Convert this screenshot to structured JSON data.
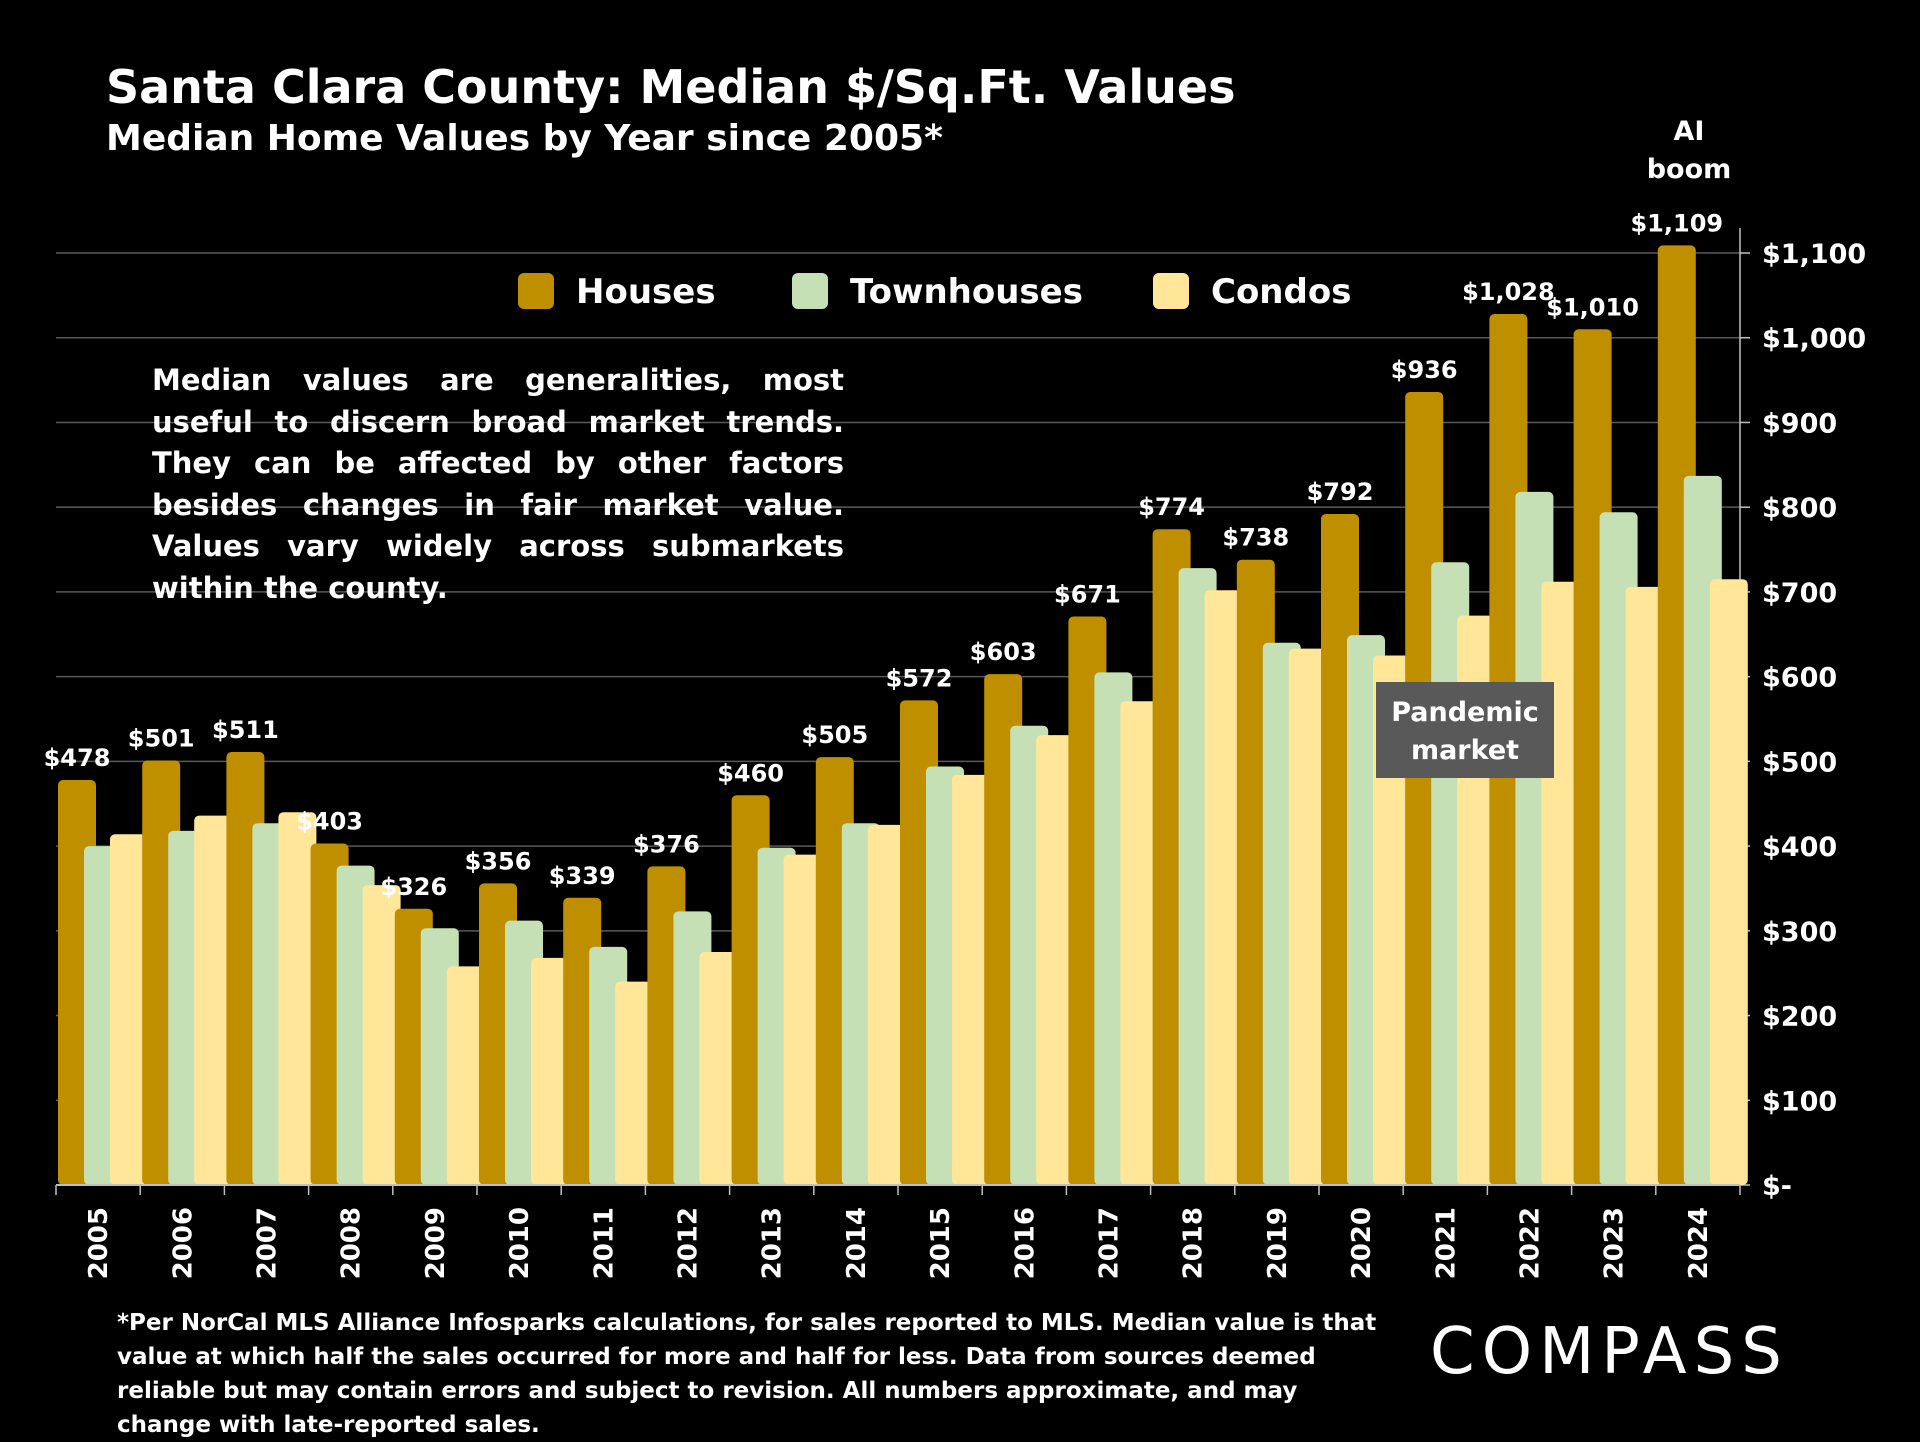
{
  "header": {
    "title": "Santa Clara County: Median $/Sq.Ft. Values",
    "subtitle": "Median Home Values by Year since 2005*"
  },
  "note": "Median values are generalities, most useful to discern broad market trends. They can be affected by other factors besides changes in fair market value. Values vary widely across submarkets within the county.",
  "footnote": "*Per NorCal MLS Alliance Infosparks calculations, for sales reported to MLS. Median value is that value at which half the sales occurred for more and half for less. Data from sources deemed reliable but may contain errors and subject to revision. All numbers approximate, and may change with late-reported sales.",
  "logo": "COMPASS",
  "annotations": {
    "pandemic": [
      "Pandemic",
      "market"
    ],
    "ai_boom": [
      "AI",
      "boom"
    ]
  },
  "colors": {
    "houses": "#BF8F00",
    "townhouses": "#C5E0B4",
    "condos": "#FFE699",
    "grid": "#595959",
    "callout": "#595959"
  },
  "chart_data": {
    "type": "bar",
    "categories": [
      "2005",
      "2006",
      "2007",
      "2008",
      "2009",
      "2010",
      "2011",
      "2012",
      "2013",
      "2014",
      "2015",
      "2016",
      "2017",
      "2018",
      "2019",
      "2020",
      "2021",
      "2022",
      "2023",
      "2024"
    ],
    "series": [
      {
        "name": "Houses",
        "values": [
          478,
          501,
          511,
          403,
          326,
          356,
          339,
          376,
          460,
          505,
          572,
          603,
          671,
          774,
          738,
          792,
          936,
          1028,
          1010,
          1109
        ]
      },
      {
        "name": "Townhouses",
        "values": [
          400,
          418,
          427,
          377,
          303,
          312,
          281,
          323,
          398,
          427,
          494,
          542,
          605,
          728,
          640,
          649,
          735,
          818,
          794,
          837
        ]
      },
      {
        "name": "Condos",
        "values": [
          414,
          436,
          440,
          354,
          258,
          268,
          240,
          275,
          390,
          425,
          484,
          531,
          571,
          702,
          633,
          625,
          672,
          712,
          706,
          715
        ]
      }
    ],
    "bar_labels": [
      "$478",
      "$501",
      "$511",
      "$403",
      "$326",
      "$356",
      "$339",
      "$376",
      "$460",
      "$505",
      "$572",
      "$603",
      "$671",
      "$774",
      "$738",
      "$792",
      "$936",
      "$1,028",
      "$1,010",
      "$1,109"
    ],
    "ylim": [
      0,
      1100
    ],
    "yticks": [
      0,
      100,
      200,
      300,
      400,
      500,
      600,
      700,
      800,
      900,
      1000,
      1100
    ],
    "ytick_labels": [
      "$-",
      "$100",
      "$200",
      "$300",
      "$400",
      "$500",
      "$600",
      "$700",
      "$800",
      "$900",
      "$1,000",
      "$1,100"
    ],
    "y_axis_side": "right",
    "grid": true,
    "legend": {
      "placement": "top-center",
      "entries": [
        "Houses",
        "Townhouses",
        "Condos"
      ]
    }
  }
}
